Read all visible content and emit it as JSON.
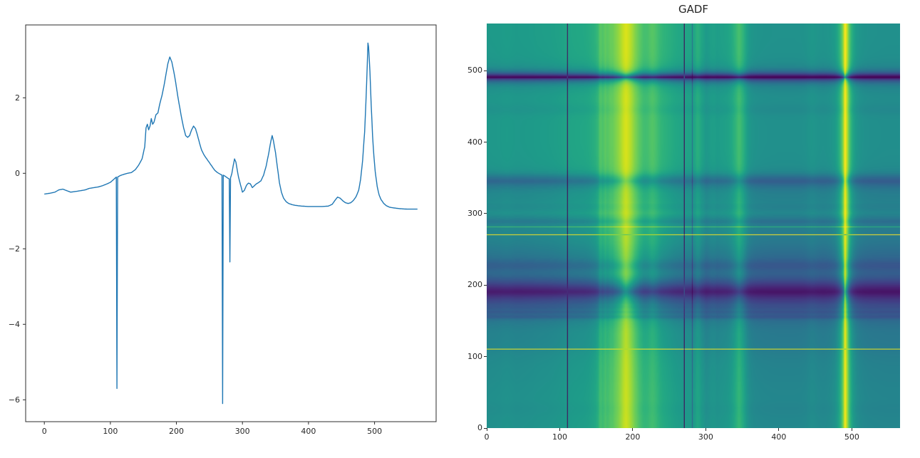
{
  "figure": {
    "background": "#ffffff"
  },
  "chart_data": [
    {
      "type": "line",
      "title": "",
      "xlabel": "",
      "ylabel": "",
      "legend": null,
      "grid": false,
      "color": "#1f77b4",
      "xlim": [
        -28.25,
        593.25
      ],
      "ylim": [
        -6.58,
        3.93
      ],
      "xticks": [
        0,
        100,
        200,
        300,
        400,
        500
      ],
      "xtick_labels": [
        "0",
        "100",
        "200",
        "300",
        "400",
        "500"
      ],
      "yticks": [
        2,
        0,
        -2,
        -4,
        -6
      ],
      "ytick_labels": [
        "2",
        "0",
        "−2",
        "−4",
        "−6"
      ],
      "interpolation": "linear",
      "x": [
        0,
        8,
        16,
        22,
        28,
        34,
        40,
        48,
        55,
        62,
        68,
        75,
        82,
        88,
        95,
        100,
        104,
        107,
        109,
        110,
        111,
        115,
        120,
        126,
        132,
        138,
        143,
        148,
        152,
        154,
        156,
        158,
        160,
        162,
        164,
        166,
        169,
        172,
        175,
        178,
        181,
        184,
        187,
        190,
        193,
        196,
        199,
        202,
        205,
        208,
        211,
        214,
        217,
        220,
        223,
        226,
        229,
        232,
        235,
        238,
        242,
        246,
        250,
        254,
        258,
        262,
        266,
        269,
        270,
        271,
        274,
        277,
        280,
        281,
        282,
        284,
        286,
        288,
        290,
        292,
        294,
        297,
        300,
        303,
        306,
        309,
        312,
        315,
        318,
        321,
        324,
        328,
        332,
        336,
        340,
        343,
        345,
        347,
        350,
        353,
        356,
        359,
        362,
        366,
        370,
        375,
        380,
        390,
        400,
        410,
        420,
        430,
        436,
        440,
        444,
        448,
        452,
        456,
        460,
        464,
        468,
        472,
        476,
        479,
        482,
        485,
        487,
        489,
        490,
        491,
        493,
        495,
        497,
        499,
        501,
        504,
        507,
        510,
        514,
        518,
        523,
        530,
        540,
        550,
        560,
        565
      ],
      "y": [
        -0.55,
        -0.53,
        -0.5,
        -0.44,
        -0.42,
        -0.46,
        -0.5,
        -0.48,
        -0.46,
        -0.44,
        -0.4,
        -0.38,
        -0.36,
        -0.33,
        -0.28,
        -0.24,
        -0.18,
        -0.13,
        -0.1,
        -5.7,
        -0.1,
        -0.06,
        -0.03,
        0.0,
        0.02,
        0.1,
        0.22,
        0.38,
        0.7,
        1.2,
        1.3,
        1.15,
        1.25,
        1.45,
        1.3,
        1.35,
        1.55,
        1.6,
        1.85,
        2.05,
        2.3,
        2.6,
        2.9,
        3.08,
        2.95,
        2.7,
        2.4,
        2.05,
        1.75,
        1.45,
        1.2,
        1.0,
        0.95,
        1.0,
        1.15,
        1.25,
        1.18,
        1.0,
        0.8,
        0.62,
        0.48,
        0.38,
        0.28,
        0.18,
        0.08,
        0.02,
        -0.02,
        -0.05,
        -6.1,
        -0.05,
        -0.08,
        -0.12,
        -0.15,
        -2.35,
        -0.12,
        0.0,
        0.2,
        0.38,
        0.3,
        0.1,
        -0.1,
        -0.3,
        -0.5,
        -0.45,
        -0.32,
        -0.26,
        -0.28,
        -0.38,
        -0.33,
        -0.28,
        -0.25,
        -0.2,
        -0.05,
        0.2,
        0.55,
        0.85,
        1.0,
        0.85,
        0.55,
        0.15,
        -0.25,
        -0.5,
        -0.65,
        -0.75,
        -0.8,
        -0.83,
        -0.85,
        -0.87,
        -0.88,
        -0.88,
        -0.88,
        -0.87,
        -0.82,
        -0.72,
        -0.63,
        -0.66,
        -0.73,
        -0.78,
        -0.8,
        -0.78,
        -0.72,
        -0.62,
        -0.45,
        -0.15,
        0.35,
        1.1,
        1.9,
        2.9,
        3.45,
        3.35,
        2.7,
        1.8,
        1.0,
        0.45,
        0.05,
        -0.35,
        -0.58,
        -0.7,
        -0.8,
        -0.86,
        -0.9,
        -0.92,
        -0.94,
        -0.95,
        -0.95,
        -0.95
      ]
    },
    {
      "type": "heatmap",
      "title": "GADF",
      "transform": "gramian_angular_difference_field",
      "source_series": 0,
      "size": 566,
      "origin": "lower",
      "value_range": [
        -1,
        1
      ],
      "xticks": [
        0,
        100,
        200,
        300,
        400,
        500
      ],
      "xtick_labels": [
        "0",
        "100",
        "200",
        "300",
        "400",
        "500"
      ],
      "yticks": [
        0,
        100,
        200,
        300,
        400,
        500
      ],
      "ytick_labels": [
        "0",
        "100",
        "200",
        "300",
        "400",
        "500"
      ],
      "colormap_name": "viridis",
      "colormap": [
        "#440154",
        "#471265",
        "#482374",
        "#45347f",
        "#404387",
        "#3a528b",
        "#345e8d",
        "#2e6b8e",
        "#29788e",
        "#24848d",
        "#21908c",
        "#1e9b89",
        "#22a784",
        "#2fb37b",
        "#44be70",
        "#5ec961",
        "#79d151",
        "#9ad83c",
        "#bdde26",
        "#dfe318",
        "#fde724"
      ]
    }
  ]
}
